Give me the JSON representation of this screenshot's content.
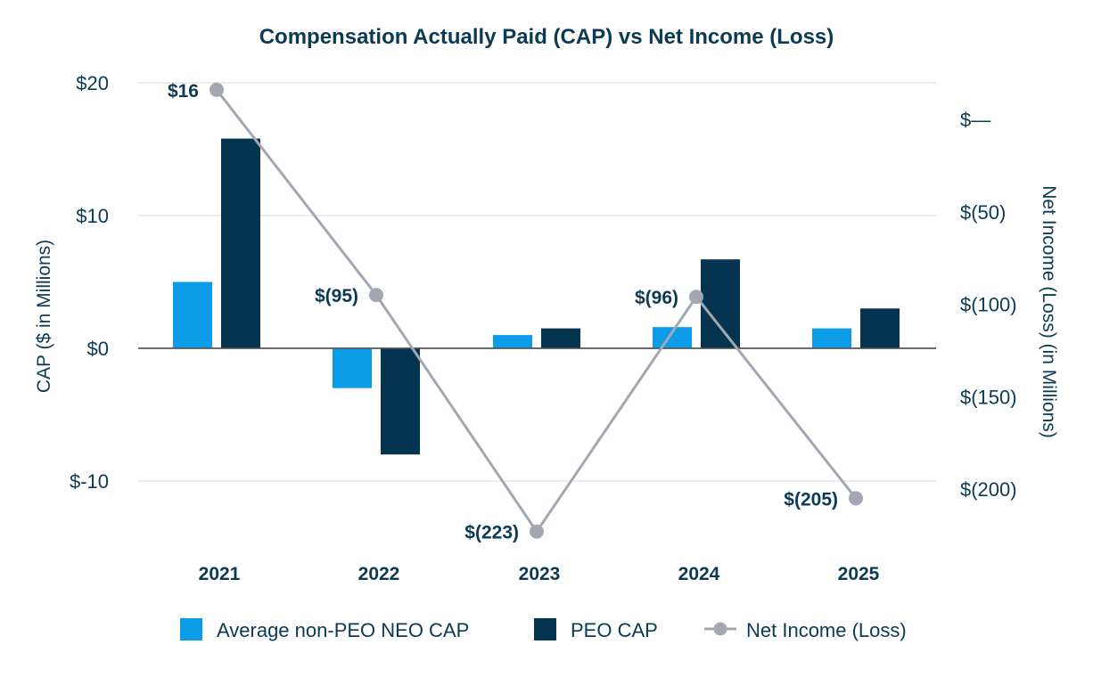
{
  "chart_data": {
    "type": "bar",
    "title": "Compensation Actually Paid (CAP) vs Net Income (Loss)",
    "categories": [
      "2021",
      "2022",
      "2023",
      "2024",
      "2025"
    ],
    "ylabel": "CAP ($ in Millions)",
    "y2label": "Net Income (Loss) (in Millions)",
    "ylim": [
      -15,
      20
    ],
    "y2lim": [
      -225,
      15
    ],
    "yticks": [
      {
        "value": 20,
        "label": "$20"
      },
      {
        "value": 10,
        "label": "$10"
      },
      {
        "value": 0,
        "label": "$0"
      },
      {
        "value": -10,
        "label": "$-10"
      }
    ],
    "y2ticks": [
      {
        "value": 0,
        "label": "$—"
      },
      {
        "value": -50,
        "label": "$(50)"
      },
      {
        "value": -100,
        "label": "$(100)"
      },
      {
        "value": -150,
        "label": "$(150)"
      },
      {
        "value": -200,
        "label": "$(200)"
      }
    ],
    "series": [
      {
        "name": "Average non-PEO NEO CAP",
        "type": "bar",
        "axis": "left",
        "color": "#0d9de8",
        "values": [
          5.0,
          -3.0,
          1.0,
          1.6,
          1.5
        ]
      },
      {
        "name": "PEO CAP",
        "type": "bar",
        "axis": "left",
        "color": "#04344f",
        "values": [
          15.8,
          -8.0,
          1.5,
          6.7,
          3.0
        ]
      },
      {
        "name": "Net Income (Loss)",
        "type": "line",
        "axis": "right",
        "color": "#a3a7b2",
        "values": [
          16,
          -95,
          -223,
          -96,
          -205
        ],
        "labels": [
          "$16",
          "$(95)",
          "$(223)",
          "$(96)",
          "$(205)"
        ]
      }
    ],
    "legend": {
      "position": "bottom"
    }
  }
}
